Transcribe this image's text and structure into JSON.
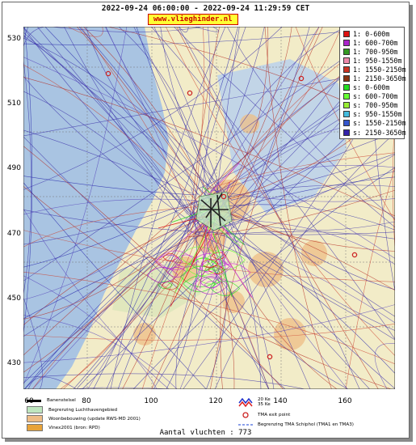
{
  "title": "2022-09-24 06:00:00 - 2022-09-24 11:29:59 CET",
  "site_badge": "www.vlieghinder.nl",
  "y_ticks": [
    "530",
    "510",
    "490",
    "470",
    "450",
    "430"
  ],
  "x_ticks": [
    "80",
    "100",
    "120",
    "140",
    "160"
  ],
  "x_tick_first": "60",
  "colors": {
    "water": "#a9c4e2",
    "land": "#f2ecc8",
    "urban": "#eebd86",
    "airport": "#bfe6bf",
    "runway": "#222222",
    "track_blue": "#3a2fa8",
    "track_red": "#b3281f"
  },
  "legend": [
    {
      "label": "1: 0-600m",
      "color": "#dd1111"
    },
    {
      "label": "1: 600-700m",
      "color": "#aa22cc"
    },
    {
      "label": "1: 700-950m",
      "color": "#339922"
    },
    {
      "label": "1: 950-1550m",
      "color": "#ee88aa"
    },
    {
      "label": "1: 1550-2150m",
      "color": "#cc3322"
    },
    {
      "label": "1: 2150-3650m",
      "color": "#883311"
    },
    {
      "label": "s: 0-600m",
      "color": "#22dd22"
    },
    {
      "label": "s: 600-700m",
      "color": "#66ff33"
    },
    {
      "label": "s: 700-950m",
      "color": "#99ee33"
    },
    {
      "label": "s: 950-1550m",
      "color": "#44bbdd"
    },
    {
      "label": "s: 1550-2150m",
      "color": "#3355cc"
    },
    {
      "label": "s: 2150-3650m",
      "color": "#3322aa"
    }
  ],
  "bottom_legend": {
    "runway": "Banenstelsel",
    "airport_boundary": "Begrenzing Luchthavengebied",
    "housing": "Woonbebouwing (update RWS-MD 2001)",
    "vinex": "Vinex2001 (bron: RPD)",
    "noise_zone_a": "20 Ke",
    "noise_zone_b": "35 Ke",
    "tma_exit": "TMA exit point",
    "tma_boundary": "Begrenzing TMA Schiphol  (TMA1 en TMA3)"
  },
  "flight_count": "Aantal vluchten : 773"
}
